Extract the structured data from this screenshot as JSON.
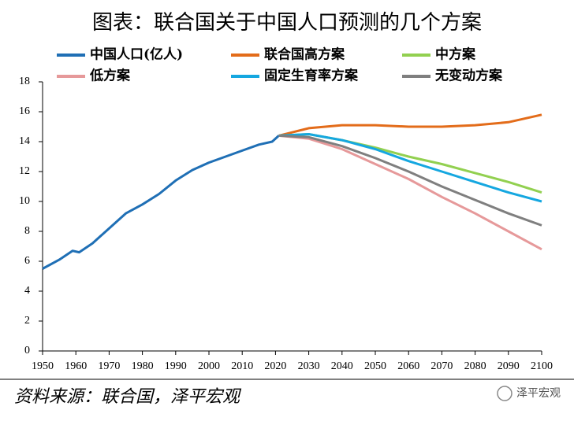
{
  "chart_data": {
    "type": "line",
    "title": "图表：联合国关于中国人口预测的几个方案",
    "xlim": [
      1950,
      2100
    ],
    "xticks": [
      1950,
      1960,
      1970,
      1980,
      1990,
      2000,
      2010,
      2020,
      2030,
      2040,
      2050,
      2060,
      2070,
      2080,
      2090,
      2100
    ],
    "ylim": [
      0,
      18
    ],
    "yticks": [
      0,
      2,
      4,
      6,
      8,
      10,
      12,
      14,
      16,
      18
    ],
    "grid": false,
    "series": [
      {
        "name": "中国人口(亿人)",
        "color": "#1f6fb5",
        "x": [
          1950,
          1955,
          1959,
          1961,
          1965,
          1970,
          1975,
          1980,
          1985,
          1990,
          1995,
          2000,
          2005,
          2010,
          2015,
          2019,
          2021
        ],
        "values": [
          5.5,
          6.1,
          6.7,
          6.6,
          7.2,
          8.2,
          9.2,
          9.8,
          10.5,
          11.4,
          12.1,
          12.6,
          13.0,
          13.4,
          13.8,
          14.0,
          14.4
        ]
      },
      {
        "name": "联合国高方案",
        "color": "#e36c1a",
        "x": [
          2021,
          2030,
          2040,
          2050,
          2060,
          2070,
          2080,
          2090,
          2100
        ],
        "values": [
          14.4,
          14.9,
          15.1,
          15.1,
          15.0,
          15.0,
          15.1,
          15.3,
          15.8
        ]
      },
      {
        "name": "中方案",
        "color": "#92d050",
        "x": [
          2021,
          2030,
          2040,
          2050,
          2060,
          2070,
          2080,
          2090,
          2100
        ],
        "values": [
          14.4,
          14.5,
          14.1,
          13.6,
          13.0,
          12.5,
          11.9,
          11.3,
          10.6
        ]
      },
      {
        "name": "低方案",
        "color": "#e6999a",
        "x": [
          2021,
          2030,
          2040,
          2050,
          2060,
          2070,
          2080,
          2090,
          2100
        ],
        "values": [
          14.4,
          14.2,
          13.5,
          12.5,
          11.5,
          10.3,
          9.2,
          8.0,
          6.8
        ]
      },
      {
        "name": "固定生育率方案",
        "color": "#15a7e0",
        "x": [
          2021,
          2030,
          2040,
          2050,
          2060,
          2070,
          2080,
          2090,
          2100
        ],
        "values": [
          14.4,
          14.5,
          14.1,
          13.5,
          12.7,
          12.0,
          11.3,
          10.6,
          10.0
        ]
      },
      {
        "name": "无变动方案",
        "color": "#7f7f7f",
        "x": [
          2021,
          2030,
          2040,
          2050,
          2060,
          2070,
          2080,
          2090,
          2100
        ],
        "values": [
          14.4,
          14.3,
          13.7,
          12.9,
          12.0,
          11.0,
          10.1,
          9.2,
          8.4
        ]
      }
    ],
    "source": "资料来源：联合国，泽平宏观",
    "watermark": "泽平宏观"
  }
}
